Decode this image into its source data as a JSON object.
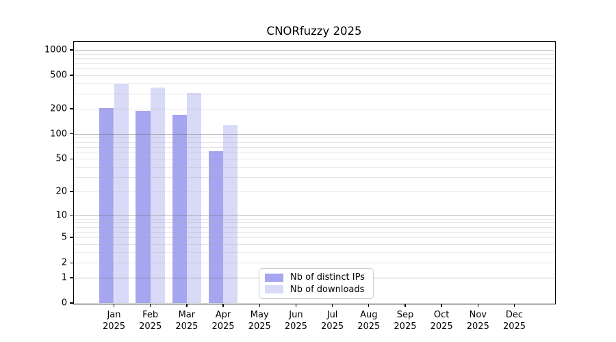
{
  "title": "CNORfuzzy 2025",
  "chart_data": {
    "type": "bar",
    "title": "CNORfuzzy 2025",
    "x": {
      "categories": [
        "Jan",
        "Feb",
        "Mar",
        "Apr",
        "May",
        "Jun",
        "Jul",
        "Aug",
        "Sep",
        "Oct",
        "Nov",
        "Dec"
      ],
      "year_label": "2025"
    },
    "series": [
      {
        "name": "Nb of distinct IPs",
        "color": "#a5a5f0",
        "values": [
          205,
          190,
          170,
          62,
          0,
          0,
          0,
          0,
          0,
          0,
          0,
          0
        ]
      },
      {
        "name": "Nb of downloads",
        "color": "#d9d9f8",
        "values": [
          395,
          355,
          305,
          128,
          0,
          0,
          0,
          0,
          0,
          0,
          0,
          0
        ]
      }
    ],
    "y_axis": {
      "scale": "log10(value+1)",
      "ticks": [
        0,
        1,
        2,
        5,
        10,
        20,
        50,
        100,
        200,
        500,
        1000
      ],
      "major_grid_at": [
        1,
        10,
        100,
        1000
      ],
      "minor_grid_base": [
        2,
        3,
        4,
        5,
        6,
        7,
        8,
        9
      ],
      "max_value": 1250
    },
    "legend": {
      "position": "lower-center",
      "entries": [
        "Nb of distinct IPs",
        "Nb of downloads"
      ]
    },
    "grid": {
      "major_color": "#b0b0b0",
      "minor_color": "#e3e3e3"
    }
  }
}
